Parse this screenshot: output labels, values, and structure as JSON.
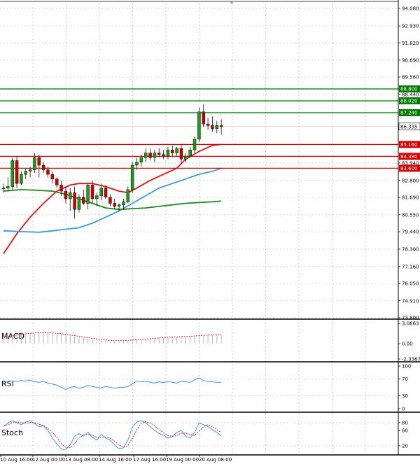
{
  "chart_data": {
    "type": "candlestick",
    "price_axis": {
      "ticks": [
        "94.080",
        "92.930",
        "91.820",
        "90.690",
        "89.580",
        "88.440",
        "83.940",
        "82.800",
        "81.690",
        "80.550",
        "79.440",
        "78.300",
        "77.160",
        "76.050",
        "74.910",
        "73.800"
      ],
      "ylim": [
        73.8,
        94.08
      ]
    },
    "levels": [
      {
        "value": "88.800",
        "color": "#007a00"
      },
      {
        "value": "88.020",
        "color": "#007a00"
      },
      {
        "value": "87.240",
        "color": "#007a00"
      },
      {
        "value": "85.160",
        "color": "#d40000"
      },
      {
        "value": "84.380",
        "color": "#d40000"
      },
      {
        "value": "83.600",
        "color": "#d40000"
      }
    ],
    "current_price": "86.335",
    "time_labels": [
      "10 Aug 16:00",
      "12 Aug 00:00",
      "13 Aug 08:00",
      "14 Aug 16:00",
      "17 Aug 16:00",
      "19 Aug 00:00",
      "20 Aug 08:00"
    ],
    "candles": [
      [
        82.3,
        82.6,
        82.0,
        82.3
      ],
      [
        82.3,
        83.0,
        82.1,
        82.4
      ],
      [
        82.4,
        84.3,
        82.2,
        84.1
      ],
      [
        84.1,
        84.4,
        82.3,
        82.6
      ],
      [
        82.6,
        83.4,
        82.5,
        83.2
      ],
      [
        83.2,
        83.6,
        82.9,
        83.4
      ],
      [
        83.4,
        83.7,
        83.0,
        83.5
      ],
      [
        83.5,
        84.6,
        83.3,
        84.3
      ],
      [
        84.3,
        84.5,
        83.0,
        83.8
      ],
      [
        83.8,
        84.0,
        83.3,
        83.5
      ],
      [
        83.5,
        83.7,
        83.0,
        83.2
      ],
      [
        83.2,
        83.4,
        82.6,
        82.9
      ],
      [
        82.9,
        83.0,
        82.3,
        82.5
      ],
      [
        82.5,
        82.8,
        81.8,
        82.1
      ],
      [
        82.1,
        82.4,
        81.3,
        81.6
      ],
      [
        81.6,
        82.3,
        80.8,
        82.0
      ],
      [
        82.0,
        82.4,
        80.3,
        80.9
      ],
      [
        80.9,
        81.9,
        80.7,
        81.7
      ],
      [
        81.7,
        82.2,
        81.2,
        81.3
      ],
      [
        81.3,
        82.6,
        80.9,
        82.5
      ],
      [
        82.5,
        82.8,
        81.3,
        81.6
      ],
      [
        81.6,
        82.0,
        81.1,
        81.8
      ],
      [
        81.8,
        82.6,
        81.5,
        82.3
      ],
      [
        82.3,
        82.5,
        81.6,
        81.7
      ],
      [
        81.7,
        81.9,
        81.1,
        81.3
      ],
      [
        81.3,
        81.6,
        80.9,
        81.1
      ],
      [
        81.1,
        81.3,
        80.8,
        81.2
      ],
      [
        81.2,
        81.6,
        80.9,
        81.4
      ],
      [
        81.4,
        82.4,
        81.3,
        82.2
      ],
      [
        82.2,
        84.0,
        82.0,
        83.8
      ],
      [
        83.8,
        84.3,
        83.5,
        84.0
      ],
      [
        84.0,
        84.5,
        83.7,
        84.3
      ],
      [
        84.3,
        84.9,
        84.0,
        84.6
      ],
      [
        84.6,
        84.9,
        84.1,
        84.3
      ],
      [
        84.3,
        84.8,
        84.0,
        84.6
      ],
      [
        84.6,
        84.9,
        84.3,
        84.5
      ],
      [
        84.5,
        84.8,
        84.2,
        84.4
      ],
      [
        84.4,
        85.0,
        84.2,
        84.8
      ],
      [
        84.8,
        85.1,
        84.4,
        84.6
      ],
      [
        84.6,
        85.0,
        84.4,
        84.9
      ],
      [
        84.9,
        85.2,
        83.9,
        84.2
      ],
      [
        84.2,
        84.6,
        84.0,
        84.4
      ],
      [
        84.4,
        85.0,
        84.3,
        84.8
      ],
      [
        84.8,
        85.7,
        84.6,
        85.5
      ],
      [
        85.5,
        87.6,
        85.3,
        87.3
      ],
      [
        87.3,
        87.8,
        86.3,
        86.5
      ],
      [
        86.5,
        86.9,
        86.1,
        86.4
      ],
      [
        86.4,
        87.0,
        86.0,
        86.2
      ],
      [
        86.2,
        86.7,
        85.9,
        86.4
      ],
      [
        86.4,
        86.8,
        85.8,
        86.335
      ]
    ],
    "moving_averages": [
      {
        "color": "#e81010",
        "values": [
          [
            0,
            78.0
          ],
          [
            3,
            79.3
          ],
          [
            6,
            80.4
          ],
          [
            9,
            81.3
          ],
          [
            12,
            82.1
          ],
          [
            15,
            82.5
          ],
          [
            17,
            82.6
          ],
          [
            20,
            82.6
          ],
          [
            23,
            82.4
          ],
          [
            26,
            82.1
          ],
          [
            28,
            82.0
          ],
          [
            30,
            82.3
          ],
          [
            33,
            82.8
          ],
          [
            36,
            83.2
          ],
          [
            39,
            83.6
          ],
          [
            41,
            84.2
          ],
          [
            44,
            84.7
          ],
          [
            47,
            85.1
          ],
          [
            49,
            85.16
          ]
        ]
      },
      {
        "color": "#3a98e8",
        "values": [
          [
            0,
            79.5
          ],
          [
            4,
            79.45
          ],
          [
            8,
            79.4
          ],
          [
            11,
            79.5
          ],
          [
            14,
            79.6
          ],
          [
            17,
            79.7
          ],
          [
            20,
            80.0
          ],
          [
            23,
            80.4
          ],
          [
            26,
            80.8
          ],
          [
            29,
            81.3
          ],
          [
            32,
            81.8
          ],
          [
            35,
            82.3
          ],
          [
            38,
            82.6
          ],
          [
            41,
            82.9
          ],
          [
            44,
            83.2
          ],
          [
            47,
            83.4
          ],
          [
            49,
            83.6
          ]
        ]
      },
      {
        "color": "#1a8a1a",
        "values": [
          [
            0,
            82.1
          ],
          [
            4,
            82.2
          ],
          [
            8,
            82.15
          ],
          [
            11,
            82.1
          ],
          [
            14,
            81.9
          ],
          [
            17,
            81.6
          ],
          [
            20,
            81.3
          ],
          [
            23,
            81.0
          ],
          [
            26,
            80.9
          ],
          [
            29,
            80.95
          ],
          [
            32,
            81.0
          ],
          [
            35,
            81.1
          ],
          [
            38,
            81.2
          ],
          [
            41,
            81.3
          ],
          [
            44,
            81.35
          ],
          [
            47,
            81.4
          ],
          [
            49,
            81.45
          ]
        ]
      }
    ],
    "macd": {
      "title": "MACD",
      "ticks": [
        "3.0663",
        "0.00",
        "-2.3367"
      ],
      "ylim": [
        -2.3367,
        3.0663
      ],
      "histogram": [
        0.9,
        1.0,
        1.1,
        1.2,
        1.3,
        1.4,
        1.5,
        1.5,
        1.6,
        1.6,
        1.6,
        1.6,
        1.5,
        1.4,
        1.3,
        1.2,
        1.1,
        1.0,
        0.9,
        0.8,
        0.7,
        0.6,
        0.5,
        0.45,
        0.4,
        0.35,
        0.35,
        0.4,
        0.45,
        0.5,
        0.55,
        0.6,
        0.7,
        0.75,
        0.8,
        0.85,
        0.9,
        0.9,
        0.95,
        1.0,
        1.0,
        1.05,
        1.1,
        1.15,
        1.2,
        1.3,
        1.3,
        1.3,
        1.3,
        1.3
      ],
      "signal": [
        1.0,
        1.1,
        1.2,
        1.3,
        1.4,
        1.5,
        1.55,
        1.6,
        1.65,
        1.65,
        1.65,
        1.6,
        1.55,
        1.5,
        1.4,
        1.3,
        1.2,
        1.1,
        1.0,
        0.9,
        0.8,
        0.7,
        0.6,
        0.55,
        0.5,
        0.45,
        0.45,
        0.45,
        0.5,
        0.55,
        0.6,
        0.65,
        0.7,
        0.75,
        0.8,
        0.85,
        0.9,
        0.95,
        1.0,
        1.0,
        1.05,
        1.05,
        1.1,
        1.15,
        1.2,
        1.25,
        1.3,
        1.3,
        1.35,
        1.35
      ]
    },
    "rsi": {
      "title": "RSI",
      "ticks": [
        "100",
        "70",
        "30",
        "0"
      ],
      "ylim": [
        0,
        100
      ],
      "values": [
        62,
        63,
        65,
        64,
        66,
        65,
        67,
        63,
        62,
        64,
        60,
        58,
        55,
        50,
        45,
        50,
        52,
        48,
        50,
        55,
        52,
        50,
        49,
        52,
        50,
        48,
        50,
        50,
        52,
        58,
        65,
        63,
        64,
        62,
        60,
        63,
        61,
        64,
        62,
        60,
        64,
        63,
        62,
        68,
        72,
        66,
        64,
        63,
        62,
        62
      ]
    },
    "stoch": {
      "title": "Stoch",
      "ticks": [
        "80",
        "60",
        "20"
      ],
      "ylim": [
        0,
        100
      ],
      "k": [
        70,
        80,
        85,
        80,
        75,
        82,
        85,
        78,
        70,
        72,
        60,
        40,
        25,
        12,
        10,
        22,
        45,
        52,
        45,
        55,
        42,
        35,
        50,
        40,
        35,
        22,
        12,
        15,
        35,
        68,
        82,
        85,
        80,
        70,
        60,
        52,
        48,
        40,
        45,
        55,
        60,
        45,
        40,
        55,
        80,
        75,
        70,
        62,
        55,
        45
      ],
      "d": [
        72,
        75,
        80,
        82,
        80,
        79,
        81,
        80,
        76,
        73,
        65,
        55,
        42,
        26,
        16,
        15,
        26,
        40,
        48,
        50,
        47,
        42,
        42,
        42,
        40,
        32,
        22,
        16,
        20,
        40,
        62,
        78,
        83,
        80,
        72,
        62,
        54,
        47,
        44,
        47,
        53,
        53,
        48,
        47,
        58,
        70,
        75,
        70,
        62,
        55
      ]
    }
  }
}
